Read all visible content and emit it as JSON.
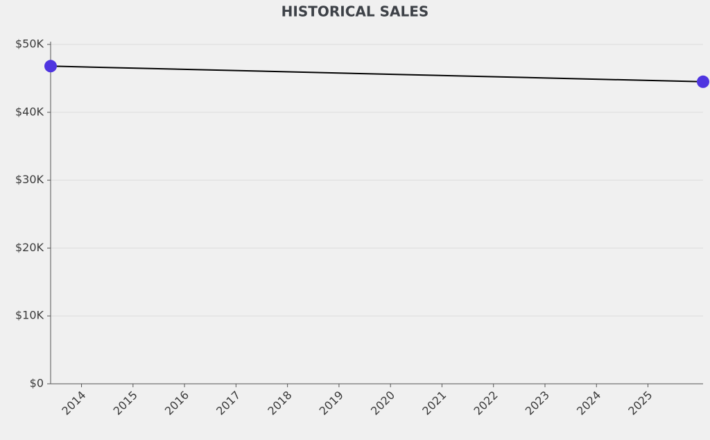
{
  "chart_data": {
    "type": "line",
    "title": "HISTORICAL SALES",
    "x": [
      2013.4,
      2026.07
    ],
    "values": [
      46800,
      44500
    ],
    "color": "#4f35e0",
    "line_color": "#000000",
    "xlim": [
      2013.4,
      2026.07
    ],
    "xticks": [
      2014,
      2015,
      2016,
      2017,
      2018,
      2019,
      2020,
      2021,
      2022,
      2023,
      2024,
      2025
    ],
    "ylim": [
      0,
      50000
    ],
    "yticks": [
      {
        "value": 0,
        "label": "$0"
      },
      {
        "value": 10000,
        "label": "$10K"
      },
      {
        "value": 20000,
        "label": "$20K"
      },
      {
        "value": 30000,
        "label": "$30K"
      },
      {
        "value": 40000,
        "label": "$40K"
      },
      {
        "value": 50000,
        "label": "$50K"
      }
    ],
    "grid": true
  }
}
